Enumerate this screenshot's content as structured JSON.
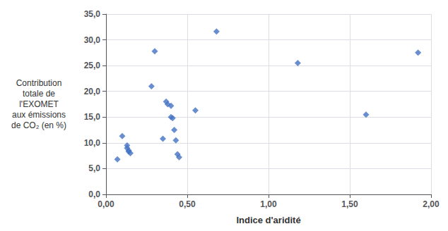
{
  "chart_data": {
    "type": "scatter",
    "x": [
      0.07,
      0.1,
      0.13,
      0.13,
      0.14,
      0.14,
      0.15,
      0.28,
      0.3,
      0.35,
      0.37,
      0.38,
      0.4,
      0.4,
      0.41,
      0.42,
      0.43,
      0.44,
      0.45,
      0.55,
      0.68,
      1.18,
      1.6,
      1.92
    ],
    "values": [
      6.8,
      11.3,
      9.0,
      9.5,
      8.3,
      8.5,
      8.0,
      21.0,
      27.8,
      10.8,
      18.0,
      17.5,
      17.2,
      15.0,
      14.8,
      12.5,
      10.5,
      7.8,
      7.2,
      16.3,
      31.6,
      25.5,
      15.5,
      27.5
    ],
    "color": "#4472C4",
    "marker": "diamond",
    "xlabel": "Indice d'aridité",
    "ylabel": "Contribution\ntotale de\nl'EXOMET\naux émissions\nde CO₂ (en %)",
    "xlim": [
      0.0,
      2.0
    ],
    "xticks": [
      {
        "value": 0.0,
        "label": "0,00"
      },
      {
        "value": 0.5,
        "label": "0,50"
      },
      {
        "value": 1.0,
        "label": "1,00"
      },
      {
        "value": 1.5,
        "label": "1,50"
      },
      {
        "value": 2.0,
        "label": "2,00"
      }
    ],
    "ylim": [
      0.0,
      35.0
    ],
    "yticks": [
      {
        "value": 0.0,
        "label": "0,0"
      },
      {
        "value": 5.0,
        "label": "5,0"
      },
      {
        "value": 10.0,
        "label": "10,0"
      },
      {
        "value": 15.0,
        "label": "15,0"
      },
      {
        "value": 20.0,
        "label": "20,0"
      },
      {
        "value": 25.0,
        "label": "25,0"
      },
      {
        "value": 30.0,
        "label": "30,0"
      },
      {
        "value": 35.0,
        "label": "35,0"
      }
    ],
    "grid": true
  }
}
